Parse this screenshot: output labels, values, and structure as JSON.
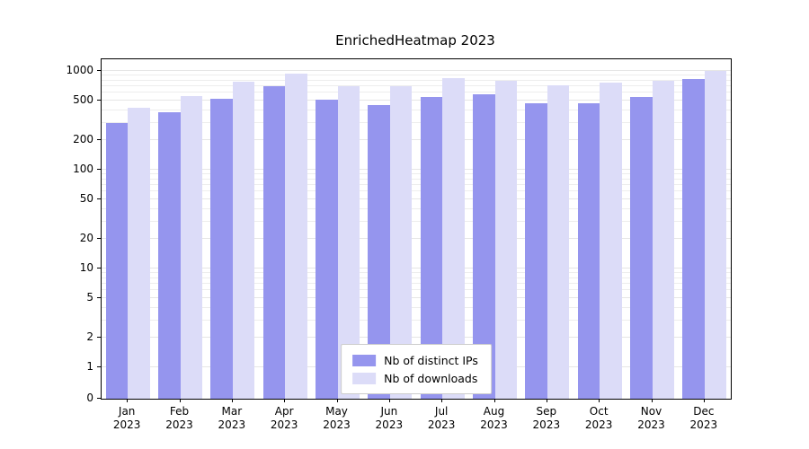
{
  "title": "EnrichedHeatmap 2023",
  "chart_data": {
    "type": "bar",
    "scale": "symlog",
    "title": "EnrichedHeatmap 2023",
    "xlabel": "",
    "ylabel": "",
    "year": "2023",
    "categories": [
      "Jan",
      "Feb",
      "Mar",
      "Apr",
      "May",
      "Jun",
      "Jul",
      "Aug",
      "Sep",
      "Oct",
      "Nov",
      "Dec"
    ],
    "series": [
      {
        "name": "Nb of distinct IPs",
        "color": "#9595ee",
        "values": [
          300,
          380,
          520,
          700,
          510,
          450,
          550,
          580,
          470,
          470,
          550,
          830
        ]
      },
      {
        "name": "Nb of downloads",
        "color": "#dcdcf8",
        "values": [
          420,
          560,
          780,
          930,
          700,
          700,
          840,
          790,
          720,
          760,
          800,
          1000
        ]
      }
    ],
    "yticks": [
      0,
      1,
      2,
      5,
      10,
      20,
      50,
      100,
      200,
      500,
      1000
    ],
    "ylim": [
      0,
      1000
    ],
    "grid": true,
    "legend_position": "lower center"
  }
}
